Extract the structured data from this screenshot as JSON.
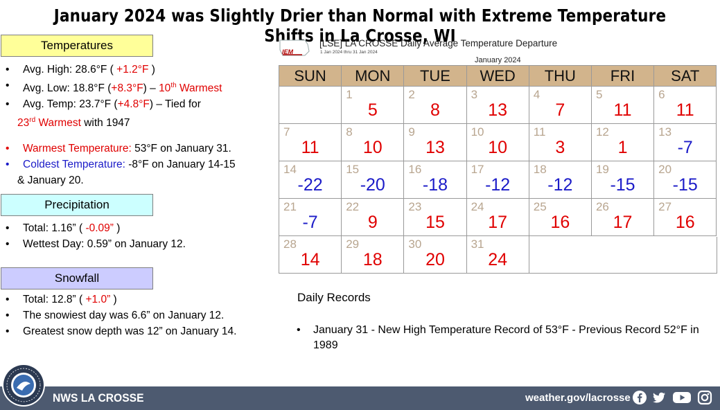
{
  "title": "January 2024 was Slightly Drier than Normal with Extreme Temperature Shifts in La Crosse, WI",
  "temperatures": {
    "label": "Temperatures",
    "avg_high_a": "Avg. High:  28.6°F ( ",
    "avg_high_b": "+1.2°F",
    "avg_high_c": " )",
    "avg_low_a": "Avg. Low:  18.8°F (",
    "avg_low_b": "+8.3°F",
    "avg_low_c": ") – ",
    "avg_low_d": "10",
    "avg_low_sup": "th",
    "avg_low_e": " Warmest",
    "avg_temp_a": "Avg. Temp:  23.7°F (",
    "avg_temp_b": "+4.8°F",
    "avg_temp_c": ") – Tied for",
    "avg_temp_d": "23",
    "avg_temp_sup": "rd",
    "avg_temp_e": " Warmest",
    "avg_temp_f": " with 1947",
    "warmest_a": "Warmest Temperature:",
    "warmest_b": "  53°F on January  31.",
    "coldest_a": "Coldest Temperature:",
    "coldest_b": "  -8°F on January 14-15",
    "coldest_c": "& January 20."
  },
  "precipitation": {
    "label": "Precipitation",
    "total_a": "Total:  1.16” ( ",
    "total_b": "-0.09”",
    "total_c": " )",
    "wettest": "Wettest Day:  0.59” on January 12."
  },
  "snowfall": {
    "label": "Snowfall",
    "total_a": "Total:  12.8” ( ",
    "total_b": "+1.0”",
    "total_c": " )",
    "snowiest": "The snowiest day was 6.6” on January 12.",
    "depth": "Greatest snow depth was 12” on January 14."
  },
  "calendar": {
    "logo_text": "IEM",
    "title": "[LSE] LA CROSSE Daily Average Temperature Departure",
    "subtitle": "1 Jan 2024 thru 31 Jan 2024",
    "month": "January 2024",
    "days": [
      "SUN",
      "MON",
      "TUE",
      "WED",
      "THU",
      "FRI",
      "SAT"
    ],
    "first_weekday": 1,
    "departures": [
      5,
      8,
      13,
      7,
      11,
      11,
      11,
      10,
      13,
      10,
      3,
      1,
      -7,
      -22,
      -20,
      -18,
      -12,
      -12,
      -15,
      -15,
      -7,
      9,
      15,
      17,
      16,
      17,
      16,
      14,
      18,
      20,
      24
    ],
    "colors": {
      "positive": "#e00000",
      "negative": "#1b1bc8",
      "day_number": "#b8a58f",
      "header": "#d2b48c"
    }
  },
  "records": {
    "title": "Daily Records",
    "item": "January 31 - New High Temperature Record  of  53°F - Previous Record 52°F in 1989"
  },
  "footer": {
    "name": "NWS LA CROSSE",
    "url": "weather.gov/lacrosse",
    "icons": [
      "facebook-icon",
      "twitter-icon",
      "youtube-icon",
      "instagram-icon"
    ]
  }
}
